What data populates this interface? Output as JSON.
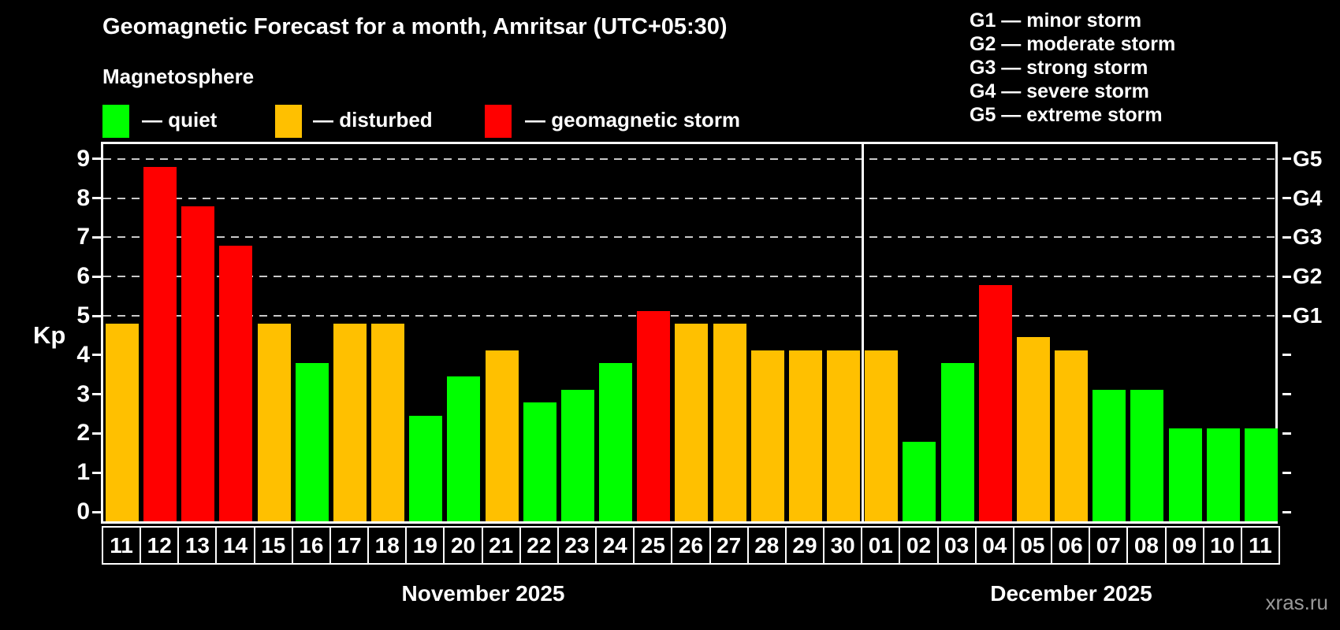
{
  "title": "Geomagnetic Forecast for a month, Amritsar (UTC+05:30)",
  "subtitle": "Magnetosphere",
  "legend": {
    "quiet": "— quiet",
    "disturbed": "— disturbed",
    "storm": "— geomagnetic storm"
  },
  "g_legend": [
    "G1 — minor storm",
    "G2 — moderate storm",
    "G3 — strong storm",
    "G4 — severe storm",
    "G5 — extreme storm"
  ],
  "axis": {
    "kp_label": "Kp"
  },
  "months": [
    {
      "label": "November 2025"
    },
    {
      "label": "December 2025"
    }
  ],
  "watermark": "xras.ru",
  "colors": {
    "quiet": "#00ff00",
    "disturbed": "#ffc000",
    "storm": "#ff0000",
    "background": "#000000",
    "axis": "#ffffff",
    "gridline": "#c9c9c9",
    "watermark_text": "#9a9a9a"
  },
  "chart_data": {
    "type": "bar",
    "title": "Geomagnetic Forecast for a month, Amritsar (UTC+05:30)",
    "ylabel": "Kp",
    "ylim": [
      0,
      9.4
    ],
    "yticks": [
      0,
      1,
      2,
      3,
      4,
      5,
      6,
      7,
      8,
      9
    ],
    "gridlines": [
      5,
      6,
      7,
      8,
      9
    ],
    "grid": "dashed horizontal at Kp 5-9 only",
    "legend_position": "top-left and top-right",
    "g_axis": [
      {
        "kp": 5,
        "label": "G1"
      },
      {
        "kp": 6,
        "label": "G2"
      },
      {
        "kp": 7,
        "label": "G3"
      },
      {
        "kp": 8,
        "label": "G4"
      },
      {
        "kp": 9,
        "label": "G5"
      }
    ],
    "days": [
      {
        "month": "November 2025",
        "day": "11",
        "value": 4.67,
        "level": "disturbed"
      },
      {
        "month": "November 2025",
        "day": "12",
        "value": 8.67,
        "level": "storm"
      },
      {
        "month": "November 2025",
        "day": "13",
        "value": 7.67,
        "level": "storm"
      },
      {
        "month": "November 2025",
        "day": "14",
        "value": 6.67,
        "level": "storm"
      },
      {
        "month": "November 2025",
        "day": "15",
        "value": 4.67,
        "level": "disturbed"
      },
      {
        "month": "November 2025",
        "day": "16",
        "value": 3.67,
        "level": "quiet"
      },
      {
        "month": "November 2025",
        "day": "17",
        "value": 4.67,
        "level": "disturbed"
      },
      {
        "month": "November 2025",
        "day": "18",
        "value": 4.67,
        "level": "disturbed"
      },
      {
        "month": "November 2025",
        "day": "19",
        "value": 2.33,
        "level": "quiet"
      },
      {
        "month": "November 2025",
        "day": "20",
        "value": 3.33,
        "level": "quiet"
      },
      {
        "month": "November 2025",
        "day": "21",
        "value": 4.0,
        "level": "disturbed"
      },
      {
        "month": "November 2025",
        "day": "22",
        "value": 2.67,
        "level": "quiet"
      },
      {
        "month": "November 2025",
        "day": "23",
        "value": 3.0,
        "level": "quiet"
      },
      {
        "month": "November 2025",
        "day": "24",
        "value": 3.67,
        "level": "quiet"
      },
      {
        "month": "November 2025",
        "day": "25",
        "value": 5.0,
        "level": "storm"
      },
      {
        "month": "November 2025",
        "day": "26",
        "value": 4.67,
        "level": "disturbed"
      },
      {
        "month": "November 2025",
        "day": "27",
        "value": 4.67,
        "level": "disturbed"
      },
      {
        "month": "November 2025",
        "day": "28",
        "value": 4.0,
        "level": "disturbed"
      },
      {
        "month": "November 2025",
        "day": "29",
        "value": 4.0,
        "level": "disturbed"
      },
      {
        "month": "November 2025",
        "day": "30",
        "value": 4.0,
        "level": "disturbed"
      },
      {
        "month": "December 2025",
        "day": "01",
        "value": 4.0,
        "level": "disturbed"
      },
      {
        "month": "December 2025",
        "day": "02",
        "value": 1.67,
        "level": "quiet"
      },
      {
        "month": "December 2025",
        "day": "03",
        "value": 3.67,
        "level": "quiet"
      },
      {
        "month": "December 2025",
        "day": "04",
        "value": 5.67,
        "level": "storm"
      },
      {
        "month": "December 2025",
        "day": "05",
        "value": 4.33,
        "level": "disturbed"
      },
      {
        "month": "December 2025",
        "day": "06",
        "value": 4.0,
        "level": "disturbed"
      },
      {
        "month": "December 2025",
        "day": "07",
        "value": 3.0,
        "level": "quiet"
      },
      {
        "month": "December 2025",
        "day": "08",
        "value": 3.0,
        "level": "quiet"
      },
      {
        "month": "December 2025",
        "day": "09",
        "value": 2.0,
        "level": "quiet"
      },
      {
        "month": "December 2025",
        "day": "10",
        "value": 2.0,
        "level": "quiet"
      },
      {
        "month": "December 2025",
        "day": "11",
        "value": 2.0,
        "level": "quiet"
      }
    ]
  }
}
